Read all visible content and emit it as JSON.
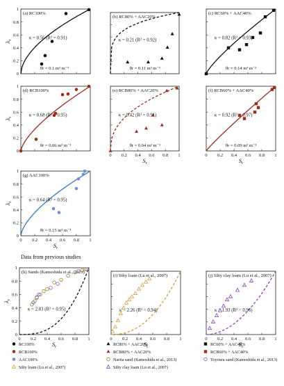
{
  "section_title": "Data from previous studies",
  "colors": {
    "black": "#111111",
    "rcb": "#9b2d1b",
    "rcb_fit": "#c8392a",
    "aac": "#6f8fd8",
    "aac_fit": "#2f7cc0",
    "narita": "#8a8a2a",
    "toyoura": "#9b59b6",
    "silty": "#c8a23c",
    "silty_clay": "#8a3fc0",
    "pink": "#f6c3c9",
    "purple_point": "#5b2d8e"
  },
  "legend": [
    {
      "label": "RC100%",
      "marker": "circle",
      "color": "black"
    },
    {
      "label": "RC80% + AAC20%",
      "marker": "triangle",
      "color": "black"
    },
    {
      "label": "RC60% + AAC40%",
      "marker": "square",
      "color": "black"
    },
    {
      "label": "RCB100%",
      "marker": "circle",
      "color": "rcb"
    },
    {
      "label": "RCB80% + AAC20%",
      "marker": "triangle",
      "color": "rcb"
    },
    {
      "label": "RCB60% + AAC40%",
      "marker": "square",
      "color": "rcb"
    },
    {
      "label": "AAC100%",
      "marker": "circle",
      "color": "aac"
    },
    {
      "label": "Narita sand (Kamoshida et al., 2013)",
      "marker": "circle-open",
      "color": "narita"
    },
    {
      "label": "Toyoura sand (Kamoshida et al., 2013)",
      "marker": "circle-open",
      "color": "toyoura"
    },
    {
      "label": "Silty loam (Lu et al., 2007)",
      "marker": "triangle-open",
      "color": "silty"
    },
    {
      "label": "Silty clay loam (Lu et al., 2007)",
      "marker": "triangle-open",
      "color": "silty_clay"
    }
  ],
  "chart_data": [
    {
      "type": "scatter",
      "title": "(a) RC100%",
      "xlabel": "",
      "ylabel": "λr",
      "xlim": [
        0,
        1
      ],
      "ylim": [
        0,
        1
      ],
      "show_xticks": false,
      "show_yticks": true,
      "yticks": [
        "0",
        "0.2",
        "0.4",
        "0.6",
        "0.8",
        "1"
      ],
      "fit": {
        "kappa": 0.56,
        "style": "solid",
        "color": "black",
        "label": "κ = 0.56 (R² = 0.91)"
      },
      "porosity_label": "θr = 0.1 m³ m⁻³",
      "series": [
        {
          "key": "RC100%",
          "marker": "circle",
          "color": "black",
          "points": [
            [
              0.3,
              0.15
            ],
            [
              0.35,
              0.28
            ],
            [
              0.45,
              0.5
            ],
            [
              0.65,
              0.93
            ],
            [
              0.98,
              0.99
            ]
          ]
        }
      ]
    },
    {
      "type": "scatter",
      "title": "(b) RC80% + AAC20%",
      "xlabel": "",
      "ylabel": "",
      "xlim": [
        0,
        1
      ],
      "ylim": [
        0,
        1
      ],
      "show_xticks": false,
      "show_yticks": false,
      "fit": {
        "kappa": 0.21,
        "style": "dashed",
        "color": "black",
        "label": "κ = 0.21 (R² = 0.92)"
      },
      "porosity_label": "θr = 0.11 m³ m⁻³",
      "series": [
        {
          "key": "RC80% + AAC20%",
          "marker": "triangle",
          "color": "black",
          "points": [
            [
              0.25,
              0.19
            ],
            [
              0.55,
              0.19
            ],
            [
              0.75,
              0.25
            ],
            [
              0.83,
              0.43
            ],
            [
              0.9,
              0.65
            ],
            [
              1.0,
              0.97
            ]
          ]
        }
      ]
    },
    {
      "type": "scatter",
      "title": "(c) RC60% + AAC40%",
      "xlabel": "",
      "ylabel": "",
      "xlim": [
        0,
        1
      ],
      "ylim": [
        0,
        1
      ],
      "show_xticks": false,
      "show_yticks": false,
      "fit": {
        "kappa": 0.82,
        "style": "solid",
        "color": "black",
        "label": "κ = 0.82 (R² = 0.93)"
      },
      "porosity_label": "θr = 0.14 m³ m⁻³",
      "series": [
        {
          "key": "RC60% + AAC40%",
          "marker": "square",
          "color": "black",
          "points": [
            [
              0.0,
              0.0
            ],
            [
              0.32,
              0.4
            ],
            [
              0.48,
              0.37
            ],
            [
              0.58,
              0.45
            ],
            [
              0.67,
              0.56
            ],
            [
              0.78,
              0.63
            ],
            [
              0.85,
              0.88
            ],
            [
              0.97,
              0.98
            ]
          ]
        }
      ]
    },
    {
      "type": "scatter",
      "title": "(d) RCB100%",
      "xlabel": "",
      "ylabel": "λr",
      "xlim": [
        0,
        1
      ],
      "ylim": [
        0,
        1
      ],
      "show_xticks": false,
      "show_yticks": true,
      "yticks": [
        "0",
        "0.2",
        "0.4",
        "0.6",
        "0.8",
        "1"
      ],
      "fit": {
        "kappa": 0.68,
        "style": "solid",
        "color": "rcb",
        "label": "κ = 0.68 (R² = 0.95)"
      },
      "porosity_label": "θr = 0.06 m³ m⁻³",
      "series": [
        {
          "key": "RCB100%",
          "marker": "circle",
          "color": "rcb",
          "points": [
            [
              0.0,
              0.0
            ],
            [
              0.22,
              0.18
            ],
            [
              0.48,
              0.55
            ],
            [
              0.5,
              0.58
            ],
            [
              0.6,
              0.87
            ],
            [
              0.68,
              0.88
            ],
            [
              0.8,
              0.95
            ],
            [
              0.98,
              1.0
            ]
          ]
        }
      ]
    },
    {
      "type": "scatter",
      "title": "(e) RCB80% + AAC20%",
      "xlabel": "Sr",
      "ylabel": "",
      "xlim": [
        0,
        1
      ],
      "ylim": [
        0,
        1
      ],
      "show_xticks": true,
      "show_yticks": false,
      "xticks": [
        "0",
        "0.2",
        "0.4",
        "0.6",
        "0.8",
        "1"
      ],
      "fit": {
        "kappa": 0.42,
        "style": "dashed",
        "color": "rcb",
        "label": "κ = 0.42 (R² = 0.91)"
      },
      "porosity_label": "θr = 0.04 m³ m⁻³",
      "series": [
        {
          "key": "RCB80% + AAC20%",
          "marker": "triangle",
          "color": "rcb",
          "points": [
            [
              0.0,
              0.0
            ],
            [
              0.38,
              0.3
            ],
            [
              0.52,
              0.35
            ],
            [
              0.62,
              0.55
            ],
            [
              0.75,
              0.4
            ],
            [
              0.82,
              0.93
            ],
            [
              0.97,
              0.97
            ]
          ]
        }
      ]
    },
    {
      "type": "scatter",
      "title": "(f) RCB60% + AAC40%",
      "xlabel": "Sr",
      "ylabel": "",
      "xlim": [
        0,
        1
      ],
      "ylim": [
        0,
        1
      ],
      "show_xticks": true,
      "show_yticks": false,
      "xticks": [
        "0",
        "0.2",
        "0.4",
        "0.6",
        "0.8",
        "1"
      ],
      "fit": {
        "kappa": 0.92,
        "style": "solid",
        "color": "rcb",
        "label": "κ = 0.92 (R² = 0.97)"
      },
      "porosity_label": "θr = 0.09 m³ m⁻³",
      "series": [
        {
          "key": "RCB60% + AAC40%",
          "marker": "square",
          "color": "rcb",
          "points": [
            [
              0.48,
              0.55
            ],
            [
              0.55,
              0.5
            ],
            [
              0.7,
              0.6
            ],
            [
              0.72,
              0.73
            ],
            [
              0.75,
              0.67
            ],
            [
              0.95,
              0.95
            ],
            [
              0.98,
              0.98
            ]
          ]
        }
      ]
    },
    {
      "type": "scatter",
      "title": "(g) AAC100%",
      "xlabel": "Sr",
      "ylabel": "λr",
      "xlim": [
        0,
        1
      ],
      "ylim": [
        0,
        1
      ],
      "show_xticks": true,
      "show_yticks": true,
      "xticks": [
        "0",
        "0.2",
        "0.4",
        "0.6",
        "0.8",
        "1"
      ],
      "yticks": [
        "0",
        "0.2",
        "0.4",
        "0.6",
        "0.8",
        "1"
      ],
      "fit": {
        "kappa": 0.64,
        "style": "solid",
        "color": "aac_fit",
        "label": "κ = 0.64 (R² = 0.95)"
      },
      "porosity_label": "θr = 0.15 m³ m⁻³",
      "series": [
        {
          "key": "AAC100%",
          "marker": "circle",
          "color": "aac",
          "points": [
            [
              0.47,
              0.42
            ],
            [
              0.55,
              0.36
            ],
            [
              0.8,
              0.73
            ],
            [
              0.83,
              0.88
            ],
            [
              0.9,
              0.95
            ],
            [
              0.92,
              1.0
            ]
          ]
        }
      ]
    },
    {
      "type": "scatter",
      "title": "(h) Sands (Kamoshida et al., 2013)",
      "xlabel": "Sr",
      "ylabel": "λr",
      "xlim": [
        0,
        1
      ],
      "ylim": [
        0,
        1
      ],
      "show_xticks": true,
      "show_yticks": true,
      "xticks": [
        "0",
        "0.2",
        "0.4",
        "0.6",
        "0.8",
        "1"
      ],
      "yticks": [
        "0",
        "0.2",
        "0.4",
        "0.6",
        "0.8",
        "1"
      ],
      "fit": {
        "kappa": 2.83,
        "style": "dashed",
        "color": "black",
        "label": "κ = 2.83 (R² = 0.95)"
      },
      "series": [
        {
          "key": "Narita sand",
          "marker": "circle-open",
          "color": "narita",
          "points": [
            [
              0.18,
              0.45
            ],
            [
              0.22,
              0.5
            ],
            [
              0.25,
              0.55
            ],
            [
              0.3,
              0.6
            ],
            [
              0.35,
              0.65
            ],
            [
              0.4,
              0.68
            ],
            [
              0.5,
              0.78
            ],
            [
              0.6,
              0.82
            ],
            [
              0.7,
              0.88
            ],
            [
              0.8,
              0.93
            ],
            [
              0.9,
              0.96
            ],
            [
              0.95,
              0.98
            ]
          ]
        },
        {
          "key": "Toyoura sand",
          "marker": "circle-open",
          "color": "toyoura",
          "points": [
            [
              0.2,
              0.48
            ],
            [
              0.25,
              0.56
            ],
            [
              0.28,
              0.6
            ],
            [
              0.45,
              0.7
            ],
            [
              0.55,
              0.76
            ],
            [
              0.85,
              0.95
            ],
            [
              0.97,
              0.98
            ]
          ]
        }
      ]
    },
    {
      "type": "scatter",
      "title": "(i) Silty loam (Lu et al., 2007)",
      "xlabel": "Sr",
      "ylabel": "",
      "xlim": [
        0,
        1
      ],
      "ylim": [
        0,
        1
      ],
      "show_xticks": true,
      "show_yticks": false,
      "xticks": [
        "0",
        "0.2",
        "0.4",
        "0.6",
        "0.8",
        "1"
      ],
      "fit": {
        "kappa": 2.26,
        "style": "dashed",
        "color": "silty",
        "label": "κ = 2.26 (R² = 0.94)"
      },
      "series": [
        {
          "key": "Silty loam",
          "marker": "triangle-open",
          "color": "silty",
          "points": [
            [
              0.02,
              0.05
            ],
            [
              0.06,
              0.12
            ],
            [
              0.1,
              0.22
            ],
            [
              0.14,
              0.33
            ],
            [
              0.18,
              0.42
            ],
            [
              0.22,
              0.5
            ],
            [
              0.26,
              0.55
            ],
            [
              0.3,
              0.6
            ],
            [
              0.35,
              0.65
            ],
            [
              0.4,
              0.72
            ],
            [
              0.45,
              0.78
            ],
            [
              0.5,
              0.83
            ],
            [
              0.55,
              0.88
            ]
          ]
        }
      ]
    },
    {
      "type": "scatter",
      "title": "(j) Silty clay loam (Lu et al., 2007)",
      "xlabel": "Sr",
      "ylabel": "",
      "xlim": [
        0,
        1
      ],
      "ylim": [
        0,
        1
      ],
      "show_xticks": true,
      "show_yticks": false,
      "xticks": [
        "0",
        "0.2",
        "0.4",
        "0.6",
        "0.8",
        "1"
      ],
      "fit": {
        "kappa": 1.93,
        "style": "dashed",
        "color": "silty_clay",
        "label": "κ = 1.93 (R² = 0.96)"
      },
      "series": [
        {
          "key": "Silty clay loam",
          "marker": "triangle-open",
          "color": "silty_clay",
          "points": [
            [
              0.05,
              0.1
            ],
            [
              0.1,
              0.2
            ],
            [
              0.15,
              0.3
            ],
            [
              0.2,
              0.38
            ],
            [
              0.25,
              0.45
            ],
            [
              0.3,
              0.55
            ],
            [
              0.35,
              0.6
            ],
            [
              0.45,
              0.7
            ],
            [
              0.55,
              0.78
            ],
            [
              0.65,
              0.85
            ]
          ]
        }
      ]
    }
  ]
}
